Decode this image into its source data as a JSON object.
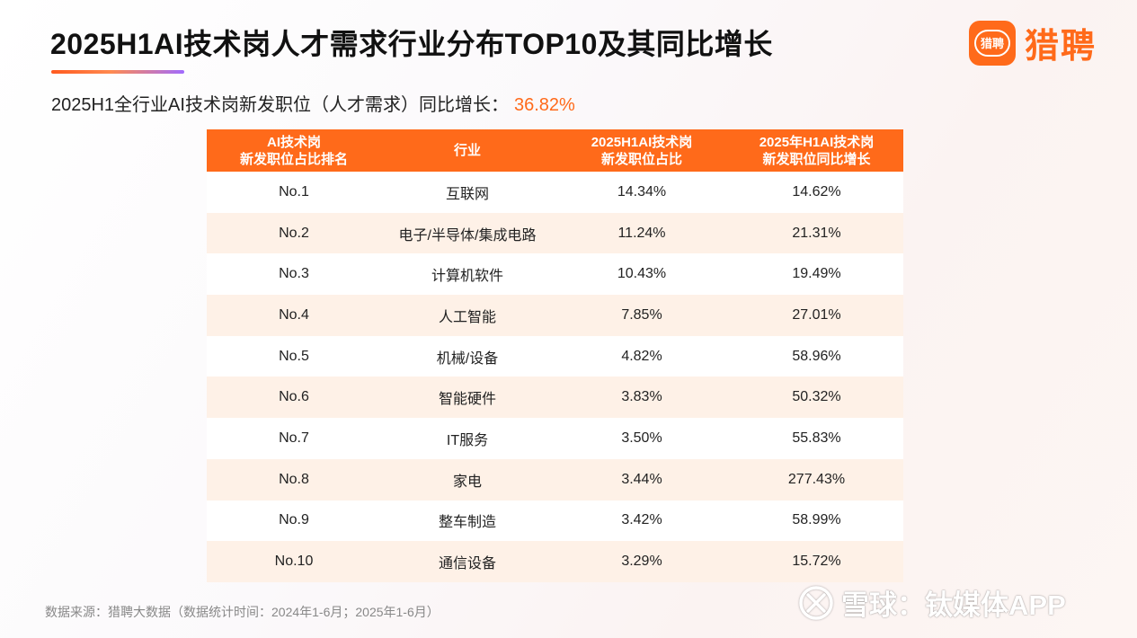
{
  "title": "2025H1AI技术岗人才需求行业分布TOP10及其同比增长",
  "logo": {
    "badge": "猎聘",
    "name": "猎聘",
    "accent": "#ff6a1a"
  },
  "subtitle": {
    "label": "2025H1全行业AI技术岗新发职位（人才需求）同比增长：",
    "value": "36.82%"
  },
  "table": {
    "headers": [
      [
        "AI技术岗",
        "新发职位占比排名"
      ],
      [
        "行业"
      ],
      [
        "2025H1AI技术岗",
        "新发职位占比"
      ],
      [
        "2025年H1AI技术岗",
        "新发职位同比增长"
      ]
    ],
    "rows": [
      [
        "No.1",
        "互联网",
        "14.34%",
        "14.62%"
      ],
      [
        "No.2",
        "电子/半导体/集成电路",
        "11.24%",
        "21.31%"
      ],
      [
        "No.3",
        "计算机软件",
        "10.43%",
        "19.49%"
      ],
      [
        "No.4",
        "人工智能",
        "7.85%",
        "27.01%"
      ],
      [
        "No.5",
        "机械/设备",
        "4.82%",
        "58.96%"
      ],
      [
        "No.6",
        "智能硬件",
        "3.83%",
        "50.32%"
      ],
      [
        "No.7",
        "IT服务",
        "3.50%",
        "55.83%"
      ],
      [
        "No.8",
        "家电",
        "3.44%",
        "277.43%"
      ],
      [
        "No.9",
        "整车制造",
        "3.42%",
        "58.99%"
      ],
      [
        "No.10",
        "通信设备",
        "3.29%",
        "15.72%"
      ]
    ]
  },
  "footer": "数据来源：猎聘大数据（数据统计时间：2024年1-6月；2025年1-6月）",
  "watermark": "雪球：钛媒体APP"
}
